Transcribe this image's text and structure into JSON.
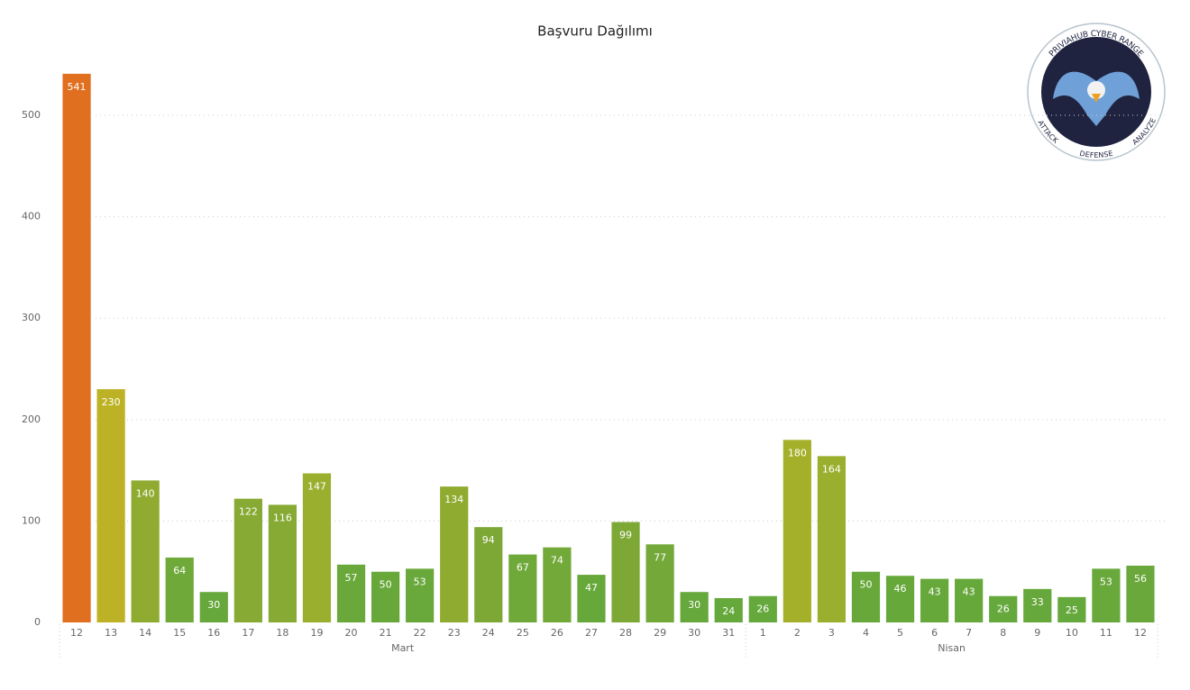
{
  "chart_data": {
    "type": "bar",
    "title": "Başvuru Dağılımı",
    "ylim": [
      0,
      560
    ],
    "yticks": [
      0,
      100,
      200,
      300,
      400,
      500
    ],
    "grid": true,
    "groups": [
      {
        "label": "Mart",
        "categories": [
          "12",
          "13",
          "14",
          "15",
          "16",
          "17",
          "18",
          "19",
          "20",
          "21",
          "22",
          "23",
          "24",
          "25",
          "26",
          "27",
          "28",
          "29",
          "30",
          "31"
        ],
        "values": [
          541,
          230,
          140,
          64,
          30,
          122,
          116,
          147,
          57,
          50,
          53,
          134,
          94,
          67,
          74,
          47,
          99,
          77,
          30,
          24
        ],
        "colors": [
          "#e07020",
          "#bdb225",
          "#8fab30",
          "#6ea93a",
          "#66a83c",
          "#86aa33",
          "#86aa33",
          "#9aaf2e",
          "#6aa83b",
          "#68a83b",
          "#69a83b",
          "#8fab30",
          "#7ea836",
          "#6fa93a",
          "#72a939",
          "#67a83b",
          "#7ea836",
          "#74a939",
          "#66a83c",
          "#65a83c"
        ]
      },
      {
        "label": "Nisan",
        "categories": [
          "1",
          "2",
          "3",
          "4",
          "5",
          "6",
          "7",
          "8",
          "9",
          "10",
          "11",
          "12"
        ],
        "values": [
          26,
          180,
          164,
          50,
          46,
          43,
          43,
          26,
          33,
          25,
          53,
          56
        ],
        "colors": [
          "#65a83c",
          "#a5b02a",
          "#9aaf2e",
          "#68a83b",
          "#67a83b",
          "#67a83b",
          "#67a83b",
          "#65a83c",
          "#66a83c",
          "#65a83c",
          "#69a83b",
          "#6aa83b"
        ]
      }
    ]
  },
  "logo": {
    "top_text": "PRIVIAHUB CYBER RANGE",
    "bottom_texts": [
      "ATTACK",
      "DEFENSE",
      "ANALYZE"
    ]
  }
}
